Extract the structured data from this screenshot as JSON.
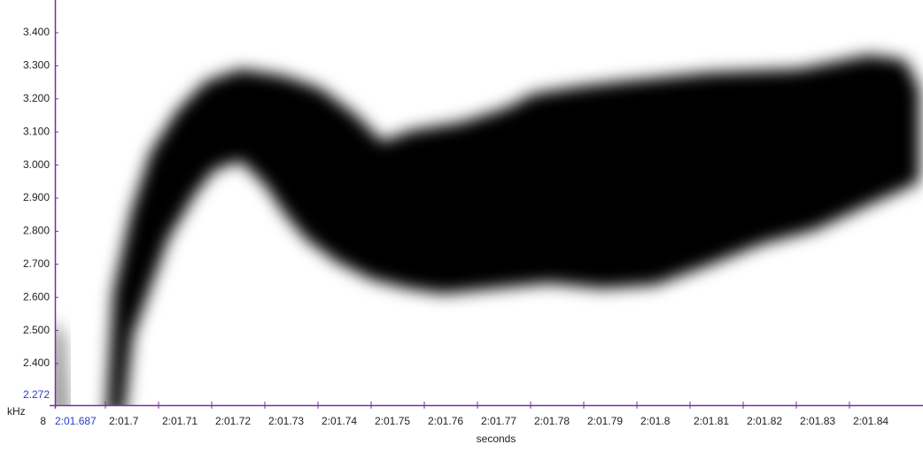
{
  "y_axis": {
    "unit": "kHz",
    "ticks": [
      "3.400",
      "3.300",
      "3.200",
      "3.100",
      "3.000",
      "2.900",
      "2.800",
      "2.700",
      "2.600",
      "2.500",
      "2.400"
    ],
    "current": "2.272"
  },
  "x_axis": {
    "label": "seconds",
    "prefix": "8",
    "start": "2:01.687",
    "ticks": [
      "2:01.7",
      "2:01.71",
      "2:01.72",
      "2:01.73",
      "2:01.74",
      "2:01.75",
      "2:01.76",
      "2:01.77",
      "2:01.78",
      "2:01.79",
      "2:01.8",
      "2:01.81",
      "2:01.82",
      "2:01.83",
      "2:01.84"
    ]
  }
}
